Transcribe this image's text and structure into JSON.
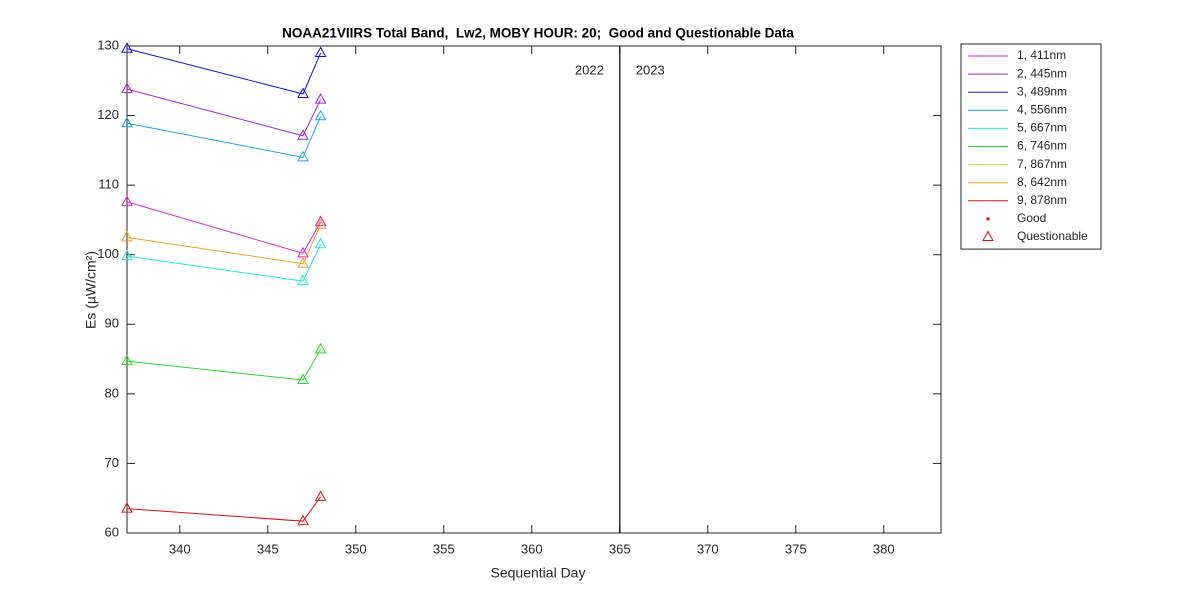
{
  "chart_data": {
    "type": "line",
    "title": "NOAA21VIIRS Total Band,  Lw2, MOBY HOUR: 20;  Good and Questionable Data",
    "xlabel": "Sequential Day",
    "ylabel": "Es (µW/cm²)",
    "x": [
      337,
      347,
      348
    ],
    "series": [
      {
        "name": "1, 411nm",
        "color": "#e81ec8",
        "values": [
          107.6,
          100.2,
          104.7
        ]
      },
      {
        "name": "2, 445nm",
        "color": "#a020f0",
        "values": [
          123.8,
          117.1,
          122.3
        ]
      },
      {
        "name": "3, 489nm",
        "color": "#1010e0",
        "values": [
          129.6,
          123.1,
          129.0
        ]
      },
      {
        "name": "4, 556nm",
        "color": "#10a8f0",
        "values": [
          118.9,
          114.0,
          119.9
        ]
      },
      {
        "name": "5, 667nm",
        "color": "#20e8e0",
        "values": [
          99.8,
          96.2,
          101.5
        ]
      },
      {
        "name": "6, 746nm",
        "color": "#20e020",
        "values": [
          84.7,
          82.0,
          86.4
        ]
      },
      {
        "name": "7, 867nm",
        "color": "#a8f040",
        "values": [
          null,
          null,
          null
        ]
      },
      {
        "name": "8, 642nm",
        "color": "#f0a020",
        "values": [
          102.5,
          98.7,
          104.3
        ]
      },
      {
        "name": "9, 878nm",
        "color": "#e01010",
        "values": [
          63.5,
          61.7,
          65.2
        ]
      }
    ],
    "marker_legend": [
      {
        "name": "Good",
        "color": "#ff0000",
        "marker": "dot"
      },
      {
        "name": "Questionable",
        "color": "#ff0000",
        "marker": "triangle"
      }
    ],
    "year_divider": {
      "x": 365,
      "labels": [
        "2022",
        "2023"
      ]
    },
    "xlim": [
      337,
      383.25
    ],
    "ylim": [
      60,
      130
    ],
    "xticks": [
      340,
      345,
      350,
      355,
      360,
      365,
      370,
      375,
      380
    ],
    "yticks": [
      60,
      70,
      80,
      90,
      100,
      110,
      120,
      130
    ],
    "grid": false,
    "legend": "outside-right"
  }
}
